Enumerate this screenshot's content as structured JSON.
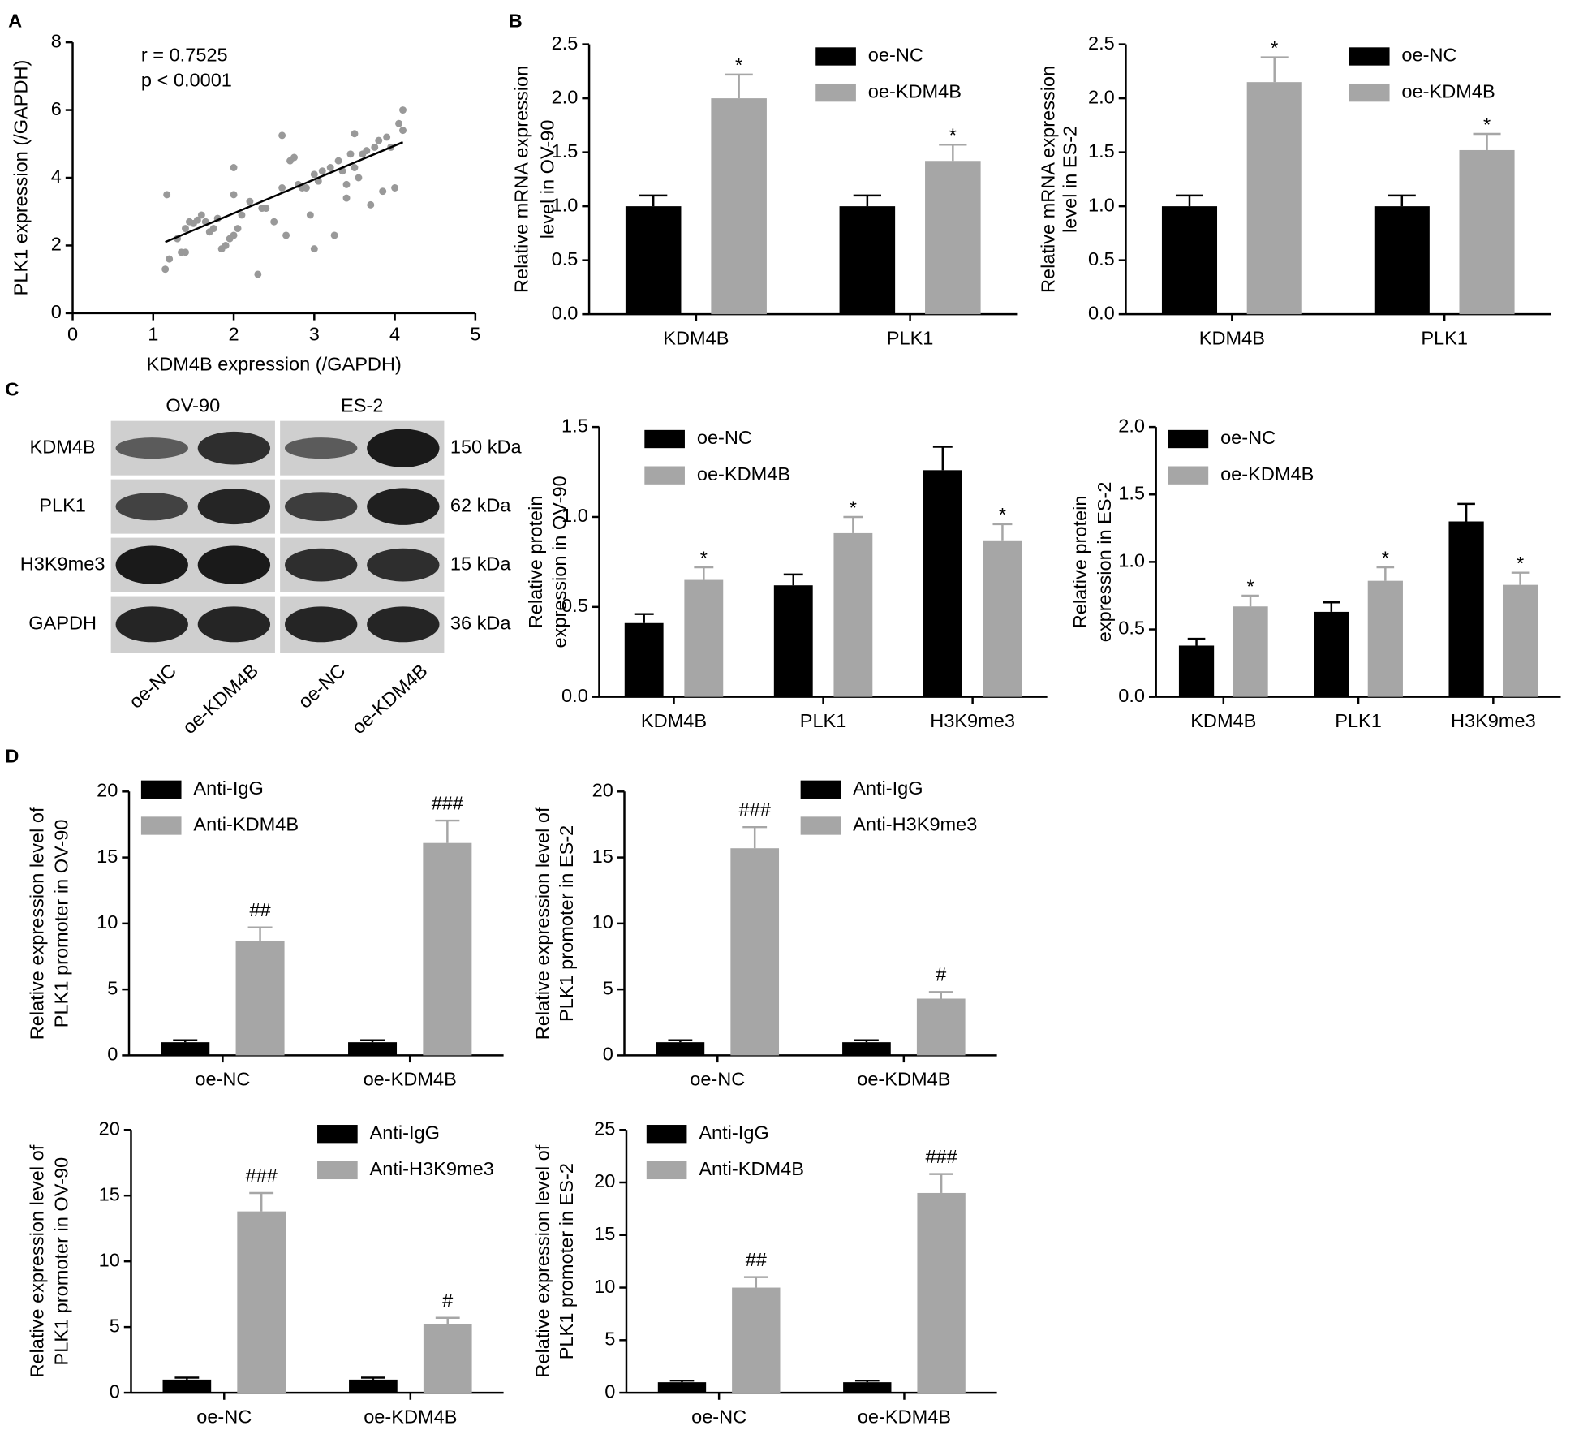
{
  "chart_data": [
    {
      "type": "scatter",
      "panel": "A",
      "xlabel": "KDM4B expression (/GAPDH)",
      "ylabel": [
        "PLK1 expression (/GAPDH)"
      ],
      "annotations": [
        "r = 0.7525",
        "p < 0.0001"
      ],
      "color": "#999999",
      "x": [
        1.17,
        1.15,
        1.2,
        1.3,
        1.35,
        1.4,
        1.4,
        1.45,
        1.5,
        1.55,
        1.6,
        1.65,
        1.7,
        1.75,
        1.8,
        1.85,
        1.9,
        1.95,
        2.0,
        2.0,
        2.05,
        2.0,
        2.1,
        2.2,
        2.3,
        2.35,
        2.4,
        2.5,
        2.6,
        2.6,
        2.65,
        2.7,
        2.75,
        2.8,
        2.85,
        2.9,
        2.95,
        3.0,
        3.0,
        3.05,
        3.1,
        3.2,
        3.25,
        3.3,
        3.35,
        3.4,
        3.4,
        3.45,
        3.5,
        3.5,
        3.55,
        3.6,
        3.65,
        3.7,
        3.75,
        3.8,
        3.85,
        3.9,
        4.0,
        4.05,
        4.1,
        3.95,
        4.1
      ],
      "y": [
        3.5,
        1.3,
        1.6,
        2.2,
        1.8,
        1.8,
        2.5,
        2.7,
        2.65,
        2.75,
        2.9,
        2.7,
        2.4,
        2.5,
        2.8,
        1.9,
        2.0,
        2.2,
        4.3,
        3.5,
        2.5,
        2.3,
        2.9,
        3.3,
        1.15,
        3.1,
        3.1,
        2.7,
        3.7,
        5.25,
        2.3,
        4.5,
        4.6,
        3.8,
        3.7,
        3.7,
        2.9,
        1.9,
        4.1,
        3.9,
        4.2,
        4.3,
        2.3,
        4.5,
        4.2,
        3.8,
        3.4,
        4.7,
        5.3,
        4.3,
        4.0,
        4.7,
        4.8,
        3.2,
        4.9,
        5.1,
        3.6,
        5.2,
        3.7,
        5.6,
        6.0,
        4.9,
        5.4
      ],
      "fit": {
        "x": [
          1.15,
          4.1
        ],
        "y": [
          2.1,
          5.05
        ],
        "color": "#000000"
      },
      "xlim": [
        0,
        5
      ],
      "xticks": [
        0,
        1,
        2,
        3,
        4,
        5
      ],
      "ylim": [
        0,
        8
      ],
      "yticks": [
        0,
        2,
        4,
        6,
        8
      ]
    },
    {
      "type": "bar",
      "panel": "B",
      "ylabel": [
        "Relative mRNA expression",
        "level in OV-90"
      ],
      "categories": [
        "KDM4B",
        "PLK1"
      ],
      "series": [
        {
          "name": "oe-NC",
          "color": "#000000",
          "values": [
            1.0,
            1.0
          ],
          "errors": [
            0.1,
            0.1
          ],
          "labels": [
            null,
            null
          ]
        },
        {
          "name": "oe-KDM4B",
          "color": "#a6a6a6",
          "values": [
            2.0,
            1.42
          ],
          "errors": [
            0.22,
            0.15
          ],
          "labels": [
            "*",
            "*"
          ]
        }
      ],
      "ylim": [
        0,
        2.5
      ],
      "yticks": [
        {
          "value": 0,
          "label": "0.0"
        },
        0.5,
        {
          "value": 1,
          "label": "1.0"
        },
        1.5,
        {
          "value": 2,
          "label": "2.0"
        },
        2.5
      ]
    },
    {
      "type": "bar",
      "ylabel": [
        "Relative mRNA expression",
        "level in ES-2"
      ],
      "categories": [
        "KDM4B",
        "PLK1"
      ],
      "series": [
        {
          "name": "oe-NC",
          "color": "#000000",
          "values": [
            1.0,
            1.0
          ],
          "errors": [
            0.1,
            0.1
          ],
          "labels": [
            null,
            null
          ]
        },
        {
          "name": "oe-KDM4B",
          "color": "#a6a6a6",
          "values": [
            2.15,
            1.52
          ],
          "errors": [
            0.23,
            0.15
          ],
          "labels": [
            "*",
            "*"
          ]
        }
      ],
      "ylim": [
        0,
        2.5
      ],
      "yticks": [
        {
          "value": 0,
          "label": "0.0"
        },
        0.5,
        {
          "value": 1,
          "label": "1.0"
        },
        1.5,
        {
          "value": 2,
          "label": "2.0"
        },
        2.5
      ]
    },
    {
      "type": "bar",
      "ylabel": [
        "Relative protein",
        "expression in OV-90"
      ],
      "categories": [
        "KDM4B",
        "PLK1",
        "H3K9me3"
      ],
      "series": [
        {
          "name": "oe-NC",
          "color": "#000000",
          "values": [
            0.41,
            0.62,
            1.26
          ],
          "errors": [
            0.05,
            0.06,
            0.13
          ],
          "labels": [
            null,
            null,
            null
          ]
        },
        {
          "name": "oe-KDM4B",
          "color": "#a6a6a6",
          "values": [
            0.65,
            0.91,
            0.87
          ],
          "errors": [
            0.07,
            0.09,
            0.09
          ],
          "labels": [
            "*",
            "*",
            "*"
          ]
        }
      ],
      "ylim": [
        0,
        1.5
      ],
      "yticks": [
        {
          "value": 0,
          "label": "0.0"
        },
        0.5,
        {
          "value": 1,
          "label": "1.0"
        },
        1.5
      ]
    },
    {
      "type": "bar",
      "ylabel": [
        "Relative protein",
        "expression in ES-2"
      ],
      "categories": [
        "KDM4B",
        "PLK1",
        "H3K9me3"
      ],
      "series": [
        {
          "name": "oe-NC",
          "color": "#000000",
          "values": [
            0.38,
            0.63,
            1.3
          ],
          "errors": [
            0.05,
            0.07,
            0.13
          ],
          "labels": [
            null,
            null,
            null
          ]
        },
        {
          "name": "oe-KDM4B",
          "color": "#a6a6a6",
          "values": [
            0.67,
            0.86,
            0.83
          ],
          "errors": [
            0.08,
            0.1,
            0.09
          ],
          "labels": [
            "*",
            "*",
            "*"
          ]
        }
      ],
      "ylim": [
        0,
        2
      ],
      "yticks": [
        {
          "value": 0,
          "label": "0.0"
        },
        0.5,
        {
          "value": 1,
          "label": "1.0"
        },
        1.5,
        {
          "value": 2,
          "label": "2.0"
        }
      ]
    },
    {
      "type": "bar",
      "panel": "D",
      "ylabel": [
        "Relative expression level of",
        "PLK1 promoter in OV-90"
      ],
      "categories": [
        "oe-NC",
        "oe-KDM4B"
      ],
      "series": [
        {
          "name": "Anti-IgG",
          "color": "#000000",
          "values": [
            1.0,
            1.0
          ],
          "errors": [
            0.15,
            0.15
          ],
          "labels": [
            null,
            null
          ]
        },
        {
          "name": "Anti-KDM4B",
          "color": "#a6a6a6",
          "values": [
            8.7,
            16.1
          ],
          "errors": [
            1.0,
            1.7
          ],
          "labels": [
            "##",
            "###"
          ]
        }
      ],
      "ylim": [
        0,
        20
      ],
      "yticks": [
        0,
        5,
        10,
        15,
        20
      ]
    },
    {
      "type": "bar",
      "ylabel": [
        "Relative expression level of",
        "PLK1 promoter in ES-2"
      ],
      "categories": [
        "oe-NC",
        "oe-KDM4B"
      ],
      "series": [
        {
          "name": "Anti-IgG",
          "color": "#000000",
          "values": [
            1.0,
            1.0
          ],
          "errors": [
            0.15,
            0.15
          ],
          "labels": [
            null,
            null
          ]
        },
        {
          "name": "Anti-H3K9me3",
          "color": "#a6a6a6",
          "values": [
            15.7,
            4.3
          ],
          "errors": [
            1.6,
            0.5
          ],
          "labels": [
            "###",
            "#"
          ]
        }
      ],
      "ylim": [
        0,
        20
      ],
      "yticks": [
        0,
        5,
        10,
        15,
        20
      ]
    },
    {
      "type": "bar",
      "ylabel": [
        "Relative expression level of",
        "PLK1 promoter in OV-90"
      ],
      "categories": [
        "oe-NC",
        "oe-KDM4B"
      ],
      "series": [
        {
          "name": "Anti-IgG",
          "color": "#000000",
          "values": [
            1.0,
            1.0
          ],
          "errors": [
            0.15,
            0.15
          ],
          "labels": [
            null,
            null
          ]
        },
        {
          "name": "Anti-H3K9me3",
          "color": "#a6a6a6",
          "values": [
            13.8,
            5.2
          ],
          "errors": [
            1.4,
            0.5
          ],
          "labels": [
            "###",
            "#"
          ]
        }
      ],
      "ylim": [
        0,
        20
      ],
      "yticks": [
        0,
        5,
        10,
        15,
        20
      ]
    },
    {
      "type": "bar",
      "ylabel": [
        "Relative expression level of",
        "PLK1 promoter in ES-2"
      ],
      "categories": [
        "oe-NC",
        "oe-KDM4B"
      ],
      "series": [
        {
          "name": "Anti-IgG",
          "color": "#000000",
          "values": [
            1.0,
            1.0
          ],
          "errors": [
            0.15,
            0.15
          ],
          "labels": [
            null,
            null
          ]
        },
        {
          "name": "Anti-KDM4B",
          "color": "#a6a6a6",
          "values": [
            10.0,
            19.0
          ],
          "errors": [
            1.0,
            1.8
          ],
          "labels": [
            "##",
            "###"
          ]
        }
      ],
      "ylim": [
        0,
        25
      ],
      "yticks": [
        0,
        5,
        10,
        15,
        20,
        25
      ]
    }
  ],
  "blot": {
    "panel": "C",
    "cell_lines": [
      "OV-90",
      "ES-2"
    ],
    "proteins": [
      "KDM4B",
      "PLK1",
      "H3K9me3",
      "GAPDH"
    ],
    "sizes": [
      "150 kDa",
      "62 kDa",
      "15 kDa",
      "36 kDa"
    ],
    "lanes": [
      "oe-NC",
      "oe-KDM4B",
      "oe-NC",
      "oe-KDM4B"
    ]
  }
}
